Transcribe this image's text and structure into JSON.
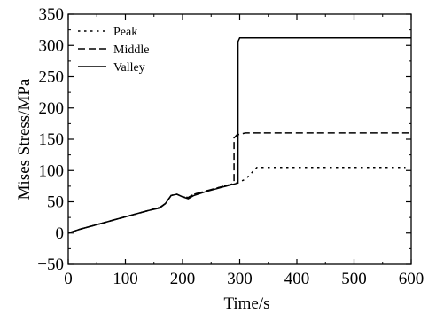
{
  "chart_data": {
    "type": "line",
    "title": "",
    "xlabel": "Time/s",
    "ylabel": "Mises Stress/MPa",
    "xlim": [
      0,
      600
    ],
    "ylim": [
      -50,
      350
    ],
    "x_ticks": [
      0,
      100,
      200,
      300,
      400,
      500,
      600
    ],
    "y_ticks": [
      -50,
      0,
      50,
      100,
      150,
      200,
      250,
      300,
      350
    ],
    "grid": false,
    "legend_position": "top-left",
    "series": [
      {
        "name": "Peak",
        "line_style": "dotted",
        "color": "#000000",
        "points": [
          [
            0,
            0
          ],
          [
            20,
            6
          ],
          [
            40,
            11
          ],
          [
            60,
            16
          ],
          [
            80,
            21
          ],
          [
            100,
            26
          ],
          [
            120,
            31
          ],
          [
            140,
            36
          ],
          [
            160,
            41
          ],
          [
            170,
            47
          ],
          [
            180,
            60
          ],
          [
            190,
            62
          ],
          [
            200,
            58
          ],
          [
            210,
            57
          ],
          [
            220,
            62
          ],
          [
            240,
            67
          ],
          [
            260,
            72
          ],
          [
            280,
            77
          ],
          [
            298,
            81
          ],
          [
            310,
            86
          ],
          [
            330,
            105
          ],
          [
            400,
            105
          ],
          [
            455,
            105
          ],
          [
            525,
            105
          ],
          [
            560,
            105
          ],
          [
            590,
            105
          ]
        ]
      },
      {
        "name": "Middle",
        "line_style": "dashed",
        "color": "#000000",
        "points": [
          [
            0,
            0
          ],
          [
            20,
            6
          ],
          [
            40,
            11
          ],
          [
            60,
            16
          ],
          [
            80,
            21
          ],
          [
            100,
            26
          ],
          [
            120,
            31
          ],
          [
            140,
            36
          ],
          [
            160,
            41
          ],
          [
            170,
            47
          ],
          [
            180,
            60
          ],
          [
            190,
            62
          ],
          [
            200,
            58
          ],
          [
            210,
            57
          ],
          [
            220,
            62
          ],
          [
            240,
            67
          ],
          [
            260,
            72
          ],
          [
            280,
            77
          ],
          [
            290,
            78
          ],
          [
            290,
            152
          ],
          [
            295,
            157
          ],
          [
            310,
            160
          ],
          [
            600,
            160
          ]
        ]
      },
      {
        "name": "Valley",
        "line_style": "solid",
        "color": "#000000",
        "points": [
          [
            0,
            0
          ],
          [
            20,
            6
          ],
          [
            40,
            11
          ],
          [
            60,
            16
          ],
          [
            80,
            21
          ],
          [
            100,
            26
          ],
          [
            120,
            31
          ],
          [
            140,
            36
          ],
          [
            160,
            40
          ],
          [
            170,
            47
          ],
          [
            180,
            60
          ],
          [
            190,
            62
          ],
          [
            200,
            58
          ],
          [
            210,
            55
          ],
          [
            220,
            60
          ],
          [
            240,
            66
          ],
          [
            260,
            71
          ],
          [
            280,
            76
          ],
          [
            297,
            80
          ],
          [
            297,
            306
          ],
          [
            300,
            312
          ],
          [
            600,
            312
          ]
        ]
      }
    ]
  }
}
